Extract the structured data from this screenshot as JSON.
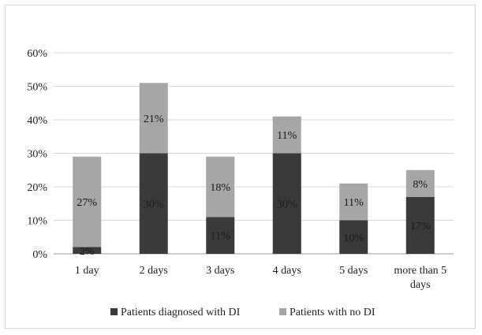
{
  "chart_data": {
    "type": "bar",
    "stacked": true,
    "categories": [
      "1 day",
      "2 days",
      "3 days",
      "4 days",
      "5 days",
      "more than 5 days"
    ],
    "category_label_lines": [
      [
        "1 day"
      ],
      [
        "2 days"
      ],
      [
        "3 days"
      ],
      [
        "4 days"
      ],
      [
        "5 days"
      ],
      [
        "more than 5",
        "days"
      ]
    ],
    "series": [
      {
        "name": "Patients diagnosed with DI",
        "values": [
          2,
          30,
          11,
          30,
          10,
          17
        ],
        "labels": [
          "2%",
          "30%",
          "11%",
          "30%",
          "10%",
          "17%"
        ],
        "color": "#3a3a3a"
      },
      {
        "name": "Patients with no DI",
        "values": [
          27,
          21,
          18,
          11,
          11,
          8
        ],
        "labels": [
          "27%",
          "21%",
          "18%",
          "11%",
          "11%",
          "8%"
        ],
        "color": "#a6a6a6"
      }
    ],
    "ylim": [
      0,
      60
    ],
    "yticks": [
      0,
      10,
      20,
      30,
      40,
      50,
      60
    ],
    "ytick_labels": [
      "0%",
      "10%",
      "20%",
      "30%",
      "40%",
      "50%",
      "60%"
    ],
    "grid": true,
    "legend_position": "bottom"
  }
}
